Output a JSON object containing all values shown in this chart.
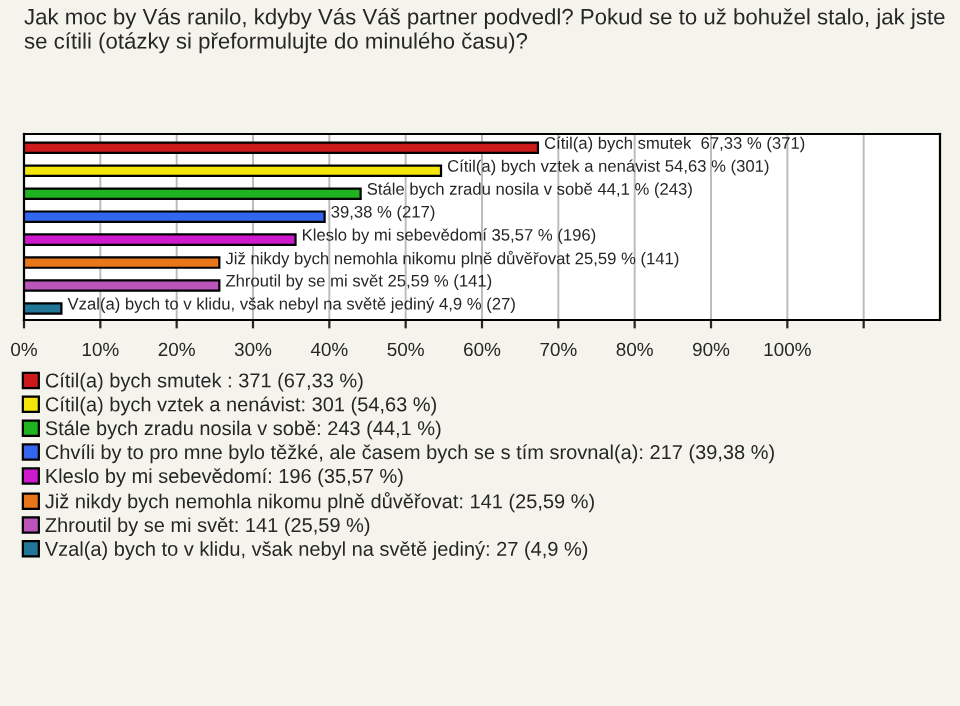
{
  "chart_data": {
    "type": "bar",
    "orientation": "horizontal",
    "title": "Jak moc by Vás ranilo, kdyby Vás Váš partner podvedl? Pokud se to už bohužel stalo, jak jste se cítili (otázky si přeformulujte do minulého času)?",
    "categories": [
      null,
      null,
      null,
      null,
      null,
      null,
      null,
      null
    ],
    "series": [
      {
        "name": "Cítil(a) bych smutek : 371 (67,33 %)",
        "color": "#cc1a1a",
        "values": [
          67.33,
          null,
          null,
          null,
          null,
          null,
          null,
          null
        ],
        "value_labels": [
          "Cítil(a) bych smutek  67,33 % (371)",
          null,
          null,
          null,
          null,
          null,
          null,
          null
        ]
      },
      {
        "name": "Cítil(a) bych vztek a nenávist: 301 (54,63 %)",
        "color": "#f5e60a",
        "values": [
          null,
          54.63,
          null,
          null,
          null,
          null,
          null,
          null
        ],
        "value_labels": [
          null,
          "Cítil(a) bych vztek a nenávist 54,63 % (301)",
          null,
          null,
          null,
          null,
          null,
          null
        ]
      },
      {
        "name": "Stále bych zradu nosila v sobě: 243 (44,1 %)",
        "color": "#1fb31f",
        "values": [
          null,
          null,
          44.1,
          null,
          null,
          null,
          null,
          null
        ],
        "value_labels": [
          null,
          null,
          "Stále bych zradu nosila v sobě 44,1 % (243)",
          null,
          null,
          null,
          null,
          null
        ]
      },
      {
        "name": "Chvíli by to pro mne bylo těžké, ale časem bych se s tím srovnal(a): 217 (39,38 %)",
        "color": "#3366ee",
        "values": [
          null,
          null,
          null,
          39.38,
          null,
          null,
          null,
          null
        ],
        "value_labels": [
          null,
          null,
          null,
          "39,38 % (217)",
          null,
          null,
          null,
          null
        ]
      },
      {
        "name": "Kleslo by mi sebevědomí: 196 (35,57 %)",
        "color": "#cc1acc",
        "values": [
          null,
          null,
          null,
          null,
          35.57,
          null,
          null,
          null
        ],
        "value_labels": [
          null,
          null,
          null,
          null,
          "Kleslo by mi sebevědomí 35,57 % (196)",
          null,
          null,
          null
        ]
      },
      {
        "name": "Již nikdy bych nemohla nikomu plně důvěřovat: 141 (25,59 %)",
        "color": "#e8761a",
        "values": [
          null,
          null,
          null,
          null,
          null,
          25.59,
          null,
          null
        ],
        "value_labels": [
          null,
          null,
          null,
          null,
          null,
          "Již nikdy bych nemohla nikomu plně důvěřovat 25,59 % (141)",
          null,
          null
        ]
      },
      {
        "name": "Zhroutil by se mi svět: 141 (25,59 %)",
        "color": "#bb55bb",
        "values": [
          null,
          null,
          null,
          null,
          null,
          null,
          25.59,
          null
        ],
        "value_labels": [
          null,
          null,
          null,
          null,
          null,
          null,
          "Zhroutil by se mi svět 25,59 % (141)",
          null
        ]
      },
      {
        "name": "Vzal(a) bych to v klidu, však nebyl na světě jediný: 27 (4,9 %)",
        "color": "#227799",
        "values": [
          null,
          null,
          null,
          null,
          null,
          null,
          null,
          4.9
        ],
        "value_labels": [
          null,
          null,
          null,
          null,
          null,
          null,
          null,
          "Vzal(a) bych to v klidu, však nebyl na světě jediný 4,9 % (27)"
        ]
      }
    ],
    "xlim": [
      0,
      120
    ],
    "xticks": [
      {
        "value": 0,
        "label": "0%"
      },
      {
        "value": 10,
        "label": "10%"
      },
      {
        "value": 20,
        "label": "20%"
      },
      {
        "value": 30,
        "label": "30%"
      },
      {
        "value": 40,
        "label": "40%"
      },
      {
        "value": 50,
        "label": "50%"
      },
      {
        "value": 60,
        "label": "60%"
      },
      {
        "value": 70,
        "label": "70%"
      },
      {
        "value": 80,
        "label": "80%"
      },
      {
        "value": 90,
        "label": "90%"
      },
      {
        "value": 100,
        "label": "100%"
      },
      {
        "value": 110,
        "label": null
      }
    ],
    "grid": "x",
    "legend": "bottom"
  }
}
